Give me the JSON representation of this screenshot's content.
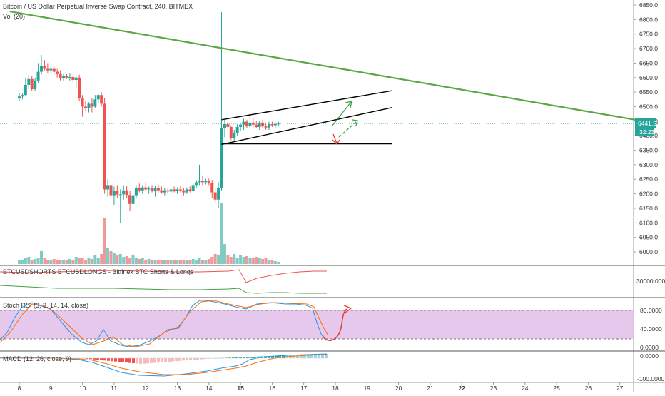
{
  "header": {
    "title": "Bitcoin / US Dollar Perpetual Inverse Swap Contract, 240, BITMEX",
    "volume_label": "Vol (20)"
  },
  "price_axis": {
    "ticks": [
      "6850.0",
      "6800.0",
      "6750.0",
      "6700.0",
      "6650.0",
      "6600.0",
      "6550.0",
      "6500.0",
      "6450.0",
      "6400.0",
      "6350.0",
      "6300.0",
      "6250.0",
      "6200.0",
      "6150.0",
      "6100.0",
      "6050.0",
      "6000.0"
    ],
    "current_price": "6441.5",
    "countdown": "32:23",
    "price_color": "#26a69a"
  },
  "x_axis": {
    "labels": [
      "8",
      "9",
      "10",
      "11",
      "12",
      "13",
      "14",
      "15",
      "16",
      "17",
      "18",
      "19",
      "20",
      "21",
      "22",
      "23",
      "24",
      "25",
      "26",
      "27"
    ],
    "bold_labels": [
      "11",
      "15",
      "22"
    ]
  },
  "panes": {
    "shorts_longs": {
      "title": "BTCUSDSHORTS BTCUSDLONGS - Bitfinex BTC Shorts & Longs",
      "tick": "30000.0000"
    },
    "stoch": {
      "title": "Stoch RSI (3, 3, 14, 14, close)",
      "ticks": [
        "80.0000",
        "40.0000",
        "0.0000"
      ]
    },
    "macd": {
      "title": "MACD (12, 26, close, 9)",
      "ticks": [
        "0.0000",
        "-100.0000"
      ]
    }
  },
  "colors": {
    "up": "#26a69a",
    "down": "#ef5350",
    "trendline": "#5aa845",
    "stoch_band": "#e1bee7",
    "k_line": "#2196f3",
    "d_line": "#ff6d00",
    "annotation_red": "#e53935"
  },
  "chart_data": {
    "type": "candlestick",
    "timeframe": "240",
    "ylim": [
      5970,
      6870
    ],
    "candles": [
      {
        "x": 0.0,
        "o": 6530,
        "h": 6545,
        "l": 6520,
        "c": 6535
      },
      {
        "x": 0.1,
        "o": 6535,
        "h": 6545,
        "l": 6525,
        "c": 6540
      },
      {
        "x": 0.2,
        "o": 6540,
        "h": 6600,
        "l": 6535,
        "c": 6575
      },
      {
        "x": 0.3,
        "o": 6575,
        "h": 6610,
        "l": 6560,
        "c": 6595
      },
      {
        "x": 0.4,
        "o": 6595,
        "h": 6605,
        "l": 6555,
        "c": 6560
      },
      {
        "x": 0.5,
        "o": 6560,
        "h": 6600,
        "l": 6555,
        "c": 6590
      },
      {
        "x": 0.6,
        "o": 6590,
        "h": 6650,
        "l": 6580,
        "c": 6620
      },
      {
        "x": 0.7,
        "o": 6620,
        "h": 6678,
        "l": 6610,
        "c": 6640
      },
      {
        "x": 0.8,
        "o": 6640,
        "h": 6660,
        "l": 6625,
        "c": 6630
      },
      {
        "x": 0.9,
        "o": 6630,
        "h": 6650,
        "l": 6615,
        "c": 6625
      },
      {
        "x": 1.0,
        "o": 6625,
        "h": 6640,
        "l": 6615,
        "c": 6630
      },
      {
        "x": 1.1,
        "o": 6630,
        "h": 6640,
        "l": 6610,
        "c": 6620
      },
      {
        "x": 1.2,
        "o": 6620,
        "h": 6630,
        "l": 6600,
        "c": 6612
      },
      {
        "x": 1.3,
        "o": 6612,
        "h": 6625,
        "l": 6590,
        "c": 6598
      },
      {
        "x": 1.4,
        "o": 6598,
        "h": 6612,
        "l": 6590,
        "c": 6605
      },
      {
        "x": 1.5,
        "o": 6605,
        "h": 6612,
        "l": 6595,
        "c": 6600
      },
      {
        "x": 1.6,
        "o": 6600,
        "h": 6615,
        "l": 6590,
        "c": 6602
      },
      {
        "x": 1.7,
        "o": 6602,
        "h": 6610,
        "l": 6585,
        "c": 6592
      },
      {
        "x": 1.8,
        "o": 6592,
        "h": 6605,
        "l": 6565,
        "c": 6600
      },
      {
        "x": 1.9,
        "o": 6600,
        "h": 6610,
        "l": 6520,
        "c": 6530
      },
      {
        "x": 2.0,
        "o": 6530,
        "h": 6540,
        "l": 6465,
        "c": 6500
      },
      {
        "x": 2.1,
        "o": 6500,
        "h": 6520,
        "l": 6485,
        "c": 6495
      },
      {
        "x": 2.2,
        "o": 6495,
        "h": 6515,
        "l": 6480,
        "c": 6510
      },
      {
        "x": 2.3,
        "o": 6510,
        "h": 6530,
        "l": 6480,
        "c": 6500
      },
      {
        "x": 2.4,
        "o": 6500,
        "h": 6540,
        "l": 6495,
        "c": 6525
      },
      {
        "x": 2.5,
        "o": 6525,
        "h": 6545,
        "l": 6510,
        "c": 6540
      },
      {
        "x": 2.6,
        "o": 6540,
        "h": 6550,
        "l": 6500,
        "c": 6510
      },
      {
        "x": 2.7,
        "o": 6510,
        "h": 6530,
        "l": 6200,
        "c": 6215
      },
      {
        "x": 2.8,
        "o": 6215,
        "h": 6250,
        "l": 6190,
        "c": 6230
      },
      {
        "x": 2.9,
        "o": 6230,
        "h": 6245,
        "l": 6180,
        "c": 6195
      },
      {
        "x": 3.0,
        "o": 6195,
        "h": 6225,
        "l": 6160,
        "c": 6210
      },
      {
        "x": 3.1,
        "o": 6210,
        "h": 6230,
        "l": 6185,
        "c": 6198
      },
      {
        "x": 3.2,
        "o": 6198,
        "h": 6215,
        "l": 6100,
        "c": 6198
      },
      {
        "x": 3.3,
        "o": 6198,
        "h": 6230,
        "l": 6180,
        "c": 6212
      },
      {
        "x": 3.4,
        "o": 6212,
        "h": 6228,
        "l": 6185,
        "c": 6196
      },
      {
        "x": 3.5,
        "o": 6196,
        "h": 6210,
        "l": 6140,
        "c": 6165
      },
      {
        "x": 3.6,
        "o": 6165,
        "h": 6200,
        "l": 6090,
        "c": 6195
      },
      {
        "x": 3.7,
        "o": 6195,
        "h": 6230,
        "l": 6185,
        "c": 6220
      },
      {
        "x": 3.8,
        "o": 6220,
        "h": 6235,
        "l": 6205,
        "c": 6212
      },
      {
        "x": 3.9,
        "o": 6212,
        "h": 6230,
        "l": 6200,
        "c": 6222
      },
      {
        "x": 4.0,
        "o": 6222,
        "h": 6240,
        "l": 6210,
        "c": 6215
      },
      {
        "x": 4.1,
        "o": 6215,
        "h": 6225,
        "l": 6200,
        "c": 6218
      },
      {
        "x": 4.2,
        "o": 6218,
        "h": 6230,
        "l": 6205,
        "c": 6210
      },
      {
        "x": 4.3,
        "o": 6210,
        "h": 6228,
        "l": 6190,
        "c": 6220
      },
      {
        "x": 4.4,
        "o": 6220,
        "h": 6232,
        "l": 6205,
        "c": 6212
      },
      {
        "x": 4.5,
        "o": 6212,
        "h": 6225,
        "l": 6200,
        "c": 6205
      },
      {
        "x": 4.6,
        "o": 6205,
        "h": 6220,
        "l": 6195,
        "c": 6212
      },
      {
        "x": 4.7,
        "o": 6212,
        "h": 6222,
        "l": 6200,
        "c": 6208
      },
      {
        "x": 4.8,
        "o": 6208,
        "h": 6220,
        "l": 6200,
        "c": 6215
      },
      {
        "x": 4.9,
        "o": 6215,
        "h": 6225,
        "l": 6205,
        "c": 6210
      },
      {
        "x": 5.0,
        "o": 6210,
        "h": 6222,
        "l": 6200,
        "c": 6215
      },
      {
        "x": 5.1,
        "o": 6215,
        "h": 6225,
        "l": 6205,
        "c": 6212
      },
      {
        "x": 5.2,
        "o": 6212,
        "h": 6220,
        "l": 6195,
        "c": 6205
      },
      {
        "x": 5.3,
        "o": 6205,
        "h": 6222,
        "l": 6200,
        "c": 6215
      },
      {
        "x": 5.4,
        "o": 6215,
        "h": 6225,
        "l": 6205,
        "c": 6210
      },
      {
        "x": 5.5,
        "o": 6210,
        "h": 6238,
        "l": 6205,
        "c": 6230
      },
      {
        "x": 5.6,
        "o": 6230,
        "h": 6248,
        "l": 6220,
        "c": 6240
      },
      {
        "x": 5.7,
        "o": 6240,
        "h": 6300,
        "l": 6230,
        "c": 6245
      },
      {
        "x": 5.8,
        "o": 6245,
        "h": 6260,
        "l": 6230,
        "c": 6240
      },
      {
        "x": 5.9,
        "o": 6240,
        "h": 6252,
        "l": 6232,
        "c": 6245
      },
      {
        "x": 6.0,
        "o": 6245,
        "h": 6252,
        "l": 6230,
        "c": 6238
      },
      {
        "x": 6.1,
        "o": 6238,
        "h": 6248,
        "l": 6185,
        "c": 6205
      },
      {
        "x": 6.2,
        "o": 6205,
        "h": 6220,
        "l": 6170,
        "c": 6180
      },
      {
        "x": 6.3,
        "o": 6180,
        "h": 6240,
        "l": 6150,
        "c": 6220
      },
      {
        "x": 6.4,
        "o": 6220,
        "h": 6825,
        "l": 6210,
        "c": 6425
      },
      {
        "x": 6.5,
        "o": 6425,
        "h": 6455,
        "l": 6395,
        "c": 6440
      },
      {
        "x": 6.6,
        "o": 6440,
        "h": 6450,
        "l": 6415,
        "c": 6430
      },
      {
        "x": 6.7,
        "o": 6430,
        "h": 6435,
        "l": 6385,
        "c": 6392
      },
      {
        "x": 6.8,
        "o": 6392,
        "h": 6420,
        "l": 6380,
        "c": 6410
      },
      {
        "x": 6.9,
        "o": 6410,
        "h": 6440,
        "l": 6400,
        "c": 6430
      },
      {
        "x": 7.0,
        "o": 6430,
        "h": 6445,
        "l": 6415,
        "c": 6438
      },
      {
        "x": 7.1,
        "o": 6438,
        "h": 6458,
        "l": 6420,
        "c": 6448
      },
      {
        "x": 7.2,
        "o": 6448,
        "h": 6455,
        "l": 6425,
        "c": 6432
      },
      {
        "x": 7.3,
        "o": 6432,
        "h": 6478,
        "l": 6428,
        "c": 6445
      },
      {
        "x": 7.4,
        "o": 6445,
        "h": 6460,
        "l": 6430,
        "c": 6438
      },
      {
        "x": 7.5,
        "o": 6438,
        "h": 6450,
        "l": 6425,
        "c": 6430
      },
      {
        "x": 7.6,
        "o": 6430,
        "h": 6450,
        "l": 6420,
        "c": 6445
      },
      {
        "x": 7.7,
        "o": 6445,
        "h": 6455,
        "l": 6425,
        "c": 6432
      },
      {
        "x": 7.8,
        "o": 6432,
        "h": 6442,
        "l": 6420,
        "c": 6428
      },
      {
        "x": 7.9,
        "o": 6428,
        "h": 6448,
        "l": 6420,
        "c": 6440
      },
      {
        "x": 8.0,
        "o": 6440,
        "h": 6448,
        "l": 6430,
        "c": 6436
      },
      {
        "x": 8.1,
        "o": 6436,
        "h": 6446,
        "l": 6428,
        "c": 6440
      },
      {
        "x": 8.2,
        "o": 6440,
        "h": 6448,
        "l": 6432,
        "c": 6441.5
      }
    ],
    "volume": [
      6,
      5,
      8,
      10,
      6,
      7,
      9,
      18,
      8,
      6,
      5,
      7,
      6,
      5,
      6,
      5,
      7,
      6,
      10,
      8,
      9,
      6,
      8,
      7,
      12,
      9,
      14,
      65,
      22,
      18,
      15,
      12,
      14,
      10,
      11,
      9,
      12,
      8,
      7,
      8,
      6,
      7,
      6,
      6,
      5,
      6,
      5,
      5,
      6,
      5,
      6,
      5,
      6,
      5,
      6,
      7,
      6,
      8,
      6,
      5,
      7,
      10,
      14,
      12,
      85,
      28,
      12,
      10,
      14,
      9,
      12,
      10,
      11,
      9,
      8,
      10,
      8,
      7,
      8,
      6,
      5,
      4,
      3
    ],
    "trendlines": [
      {
        "name": "descending-trendline",
        "from": {
          "x": -0.3,
          "y": 6828
        },
        "to": {
          "x": 20.2,
          "y": 6441.5
        }
      },
      {
        "name": "channel-upper",
        "from": {
          "x": 6.4,
          "y": 6455
        },
        "to": {
          "x": 11.8,
          "y": 6555
        }
      },
      {
        "name": "channel-lower",
        "from": {
          "x": 6.4,
          "y": 6370
        },
        "to": {
          "x": 11.8,
          "y": 6497
        }
      },
      {
        "name": "support-line",
        "from": {
          "x": 6.4,
          "y": 6372
        },
        "to": {
          "x": 11.8,
          "y": 6372
        }
      }
    ]
  }
}
